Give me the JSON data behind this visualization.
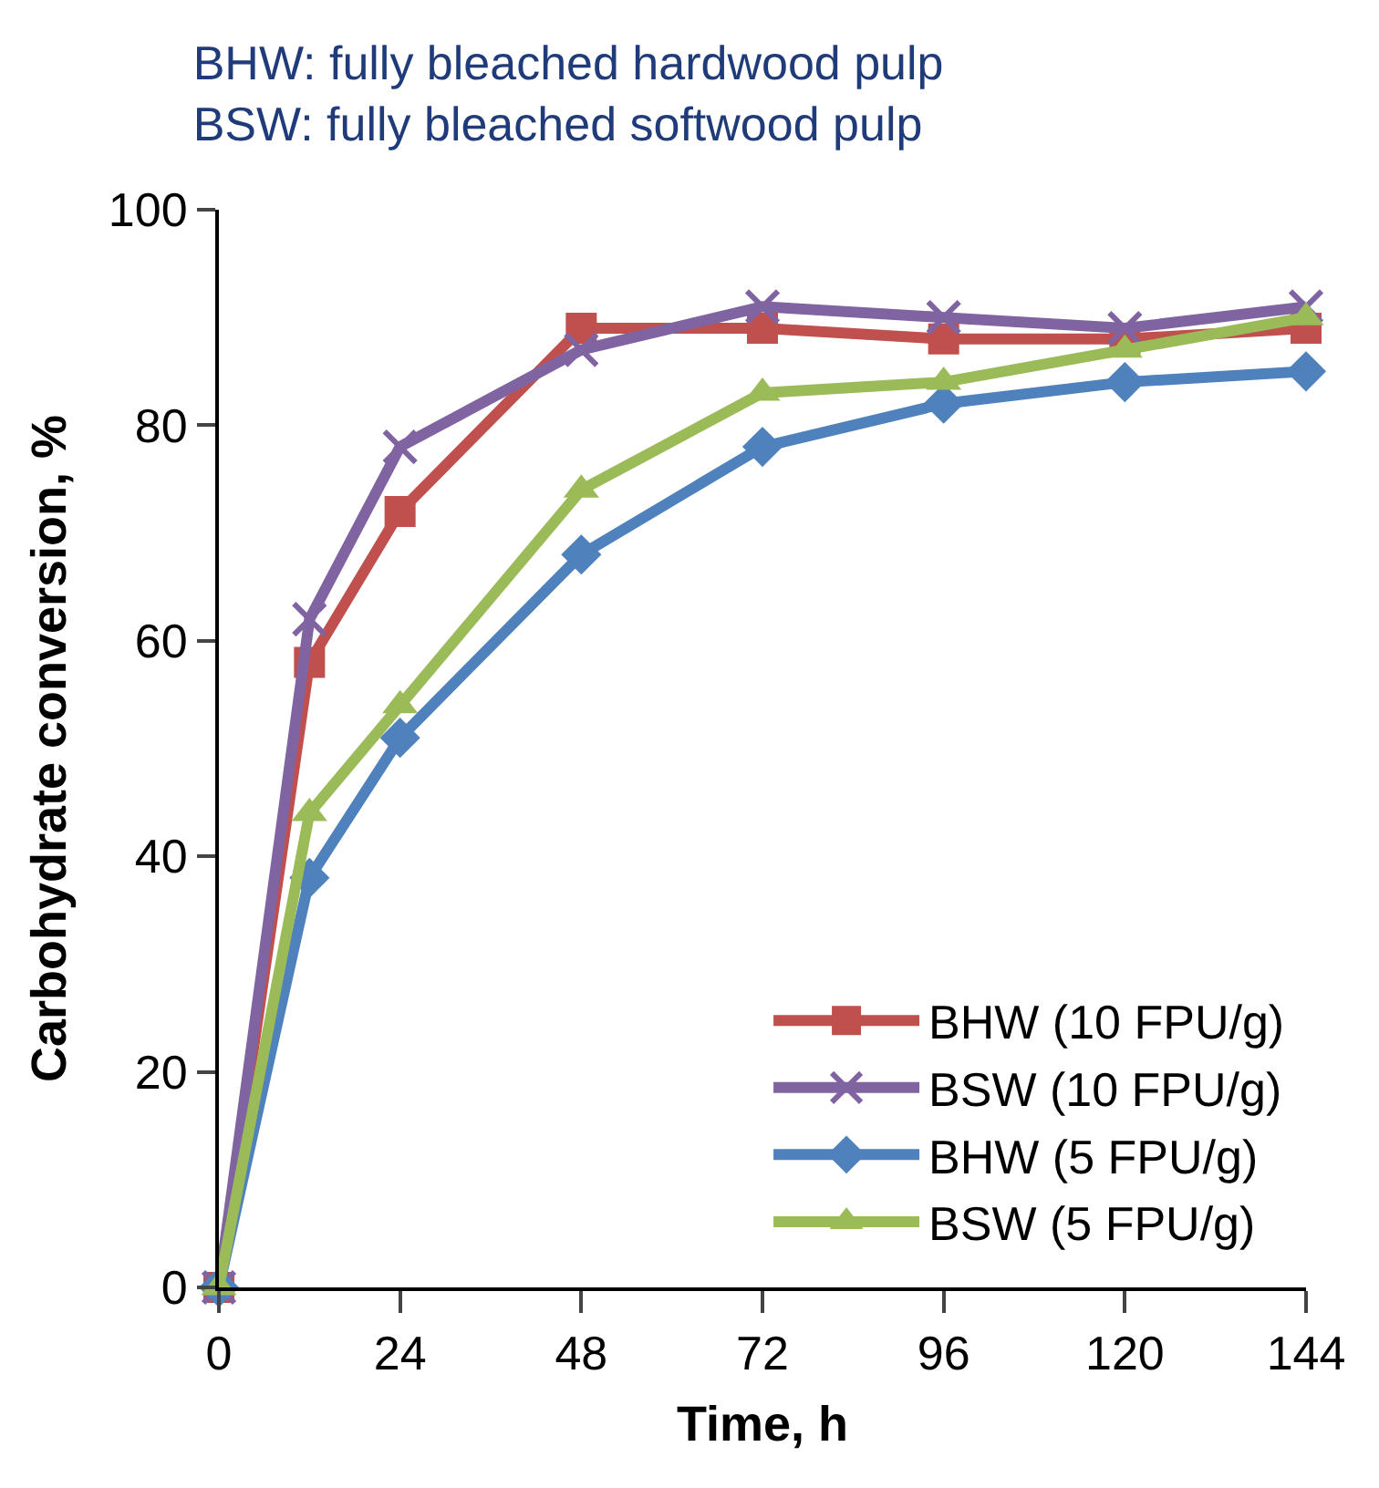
{
  "chart_data": {
    "type": "line",
    "title": "BHW: fully bleached hardwood pulp\nBSW: fully bleached softwood pulp",
    "xlabel": "Time, h",
    "ylabel": "Carbohydrate conversion, %",
    "x": [
      0,
      12,
      24,
      48,
      72,
      96,
      120,
      144
    ],
    "xlim": [
      0,
      144
    ],
    "xticks": [
      0,
      24,
      48,
      72,
      96,
      120,
      144
    ],
    "ylim": [
      0,
      100
    ],
    "yticks": [
      0,
      20,
      40,
      60,
      80,
      100
    ],
    "legend": "bottom right",
    "line_style": "solid",
    "series": [
      {
        "name": "BHW (10 FPU/g)",
        "color": "#c0504d",
        "marker": "square",
        "values": [
          0,
          58,
          72,
          89,
          89,
          88,
          88,
          89
        ]
      },
      {
        "name": "BSW (10 FPU/g)",
        "color": "#8064a2",
        "marker": "cross",
        "values": [
          0,
          62,
          78,
          87,
          91,
          90,
          89,
          91
        ]
      },
      {
        "name": "BHW (5 FPU/g)",
        "color": "#4f81bd",
        "marker": "diamond",
        "values": [
          0,
          38,
          51,
          68,
          78,
          82,
          84,
          85
        ]
      },
      {
        "name": "BSW (5 FPU/g)",
        "color": "#9bbb59",
        "marker": "triangle",
        "values": [
          0,
          44,
          54,
          74,
          83,
          84,
          87,
          90
        ]
      }
    ]
  }
}
